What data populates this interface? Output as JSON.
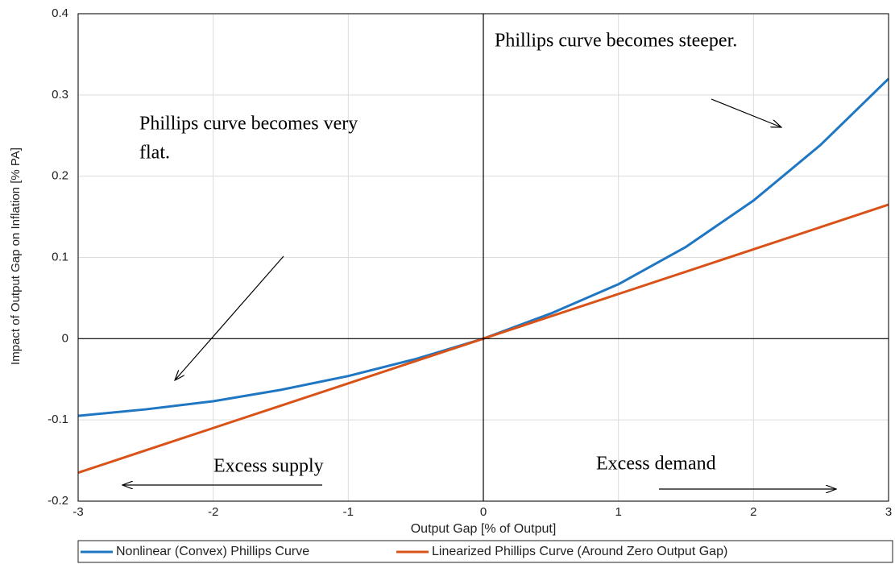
{
  "chart_data": {
    "type": "line",
    "xlabel": "Output Gap [% of Output]",
    "ylabel": "Impact of Output Gap on Inflation [% PA]",
    "x": [
      -3,
      -2.5,
      -2,
      -1.5,
      -1,
      -0.5,
      0,
      0.5,
      1,
      1.5,
      2,
      2.5,
      3
    ],
    "series": [
      {
        "name": "Nonlinear (Convex) Phillips Curve",
        "color": "#1f77c4",
        "values": [
          -0.095,
          -0.087,
          -0.077,
          -0.063,
          -0.046,
          -0.025,
          0,
          0.031,
          0.067,
          0.113,
          0.17,
          0.239,
          0.32
        ]
      },
      {
        "name": "Linearized Phillips Curve (Around Zero Output Gap)",
        "color": "#d95319",
        "values": [
          -0.165,
          -0.1375,
          -0.11,
          -0.0825,
          -0.055,
          -0.0275,
          0,
          0.0275,
          0.055,
          0.0825,
          0.11,
          0.1375,
          0.165
        ]
      }
    ],
    "xlim": [
      -3,
      3
    ],
    "ylim": [
      -0.2,
      0.4
    ],
    "xticks": [
      -3,
      -2,
      -1,
      0,
      1,
      2,
      3
    ],
    "yticks": [
      -0.2,
      -0.1,
      0,
      0.1,
      0.2,
      0.3,
      0.4
    ],
    "grid": true,
    "legend": "bottom",
    "annotations": [
      "Phillips curve becomes steeper.",
      "Phillips curve becomes very",
      "flat.",
      "Excess supply",
      "Excess demand"
    ]
  }
}
